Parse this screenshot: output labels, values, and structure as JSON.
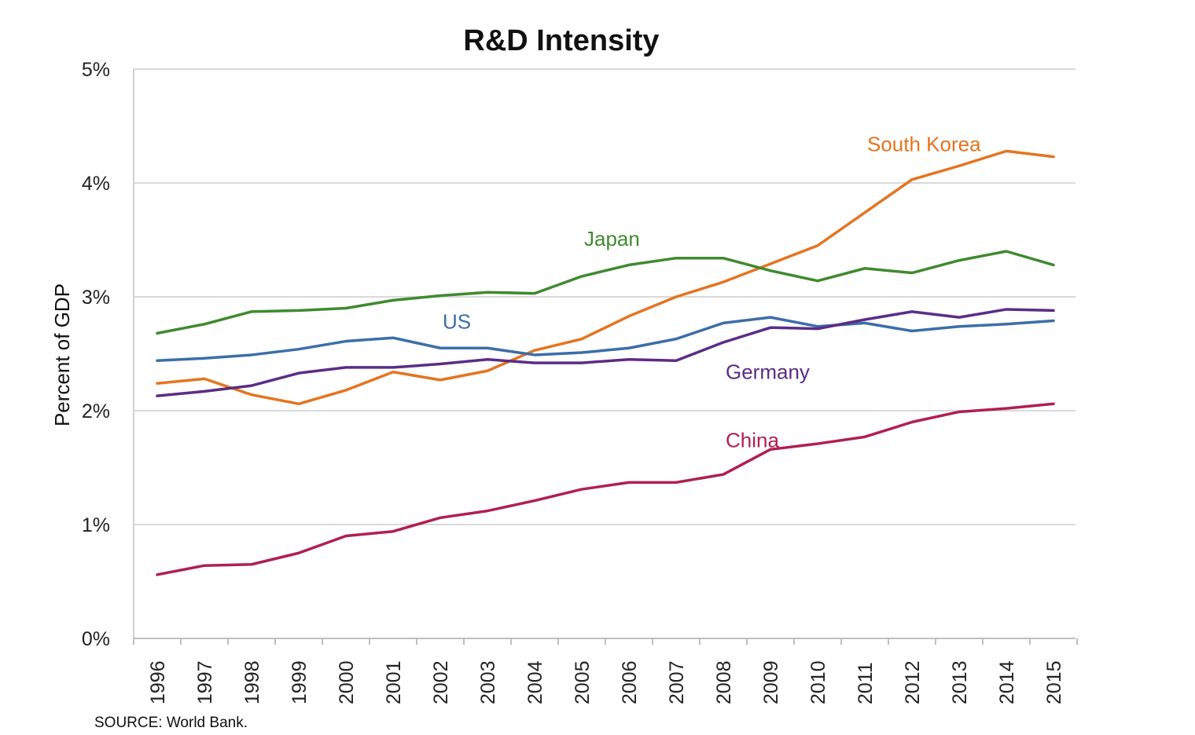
{
  "chart_data": {
    "type": "line",
    "title": "R&D Intensity",
    "xlabel": "",
    "ylabel": "Percent of GDP",
    "source": "SOURCE: World Bank.",
    "x": [
      "1996",
      "1997",
      "1998",
      "1999",
      "2000",
      "2001",
      "2002",
      "2003",
      "2004",
      "2005",
      "2006",
      "2007",
      "2008",
      "2009",
      "2010",
      "2011",
      "2012",
      "2013",
      "2014",
      "2015"
    ],
    "ylim": [
      0,
      5
    ],
    "yticks": [
      {
        "value": 0,
        "label": "0%"
      },
      {
        "value": 1,
        "label": "1%"
      },
      {
        "value": 2,
        "label": "2%"
      },
      {
        "value": 3,
        "label": "3%"
      },
      {
        "value": 4,
        "label": "4%"
      },
      {
        "value": 5,
        "label": "5%"
      }
    ],
    "grid": true,
    "legend": "inline labels",
    "series": [
      {
        "name": "South Korea",
        "color": "#E5741F",
        "values": [
          2.24,
          2.28,
          2.14,
          2.06,
          2.18,
          2.34,
          2.27,
          2.35,
          2.53,
          2.63,
          2.83,
          3.0,
          3.13,
          3.29,
          3.45,
          3.74,
          4.03,
          4.15,
          4.28,
          4.23
        ]
      },
      {
        "name": "Japan",
        "color": "#3F8A2F",
        "values": [
          2.68,
          2.76,
          2.87,
          2.88,
          2.9,
          2.97,
          3.01,
          3.04,
          3.03,
          3.18,
          3.28,
          3.34,
          3.34,
          3.23,
          3.14,
          3.25,
          3.21,
          3.32,
          3.4,
          3.28
        ]
      },
      {
        "name": "US",
        "color": "#3B6EA8",
        "values": [
          2.44,
          2.46,
          2.49,
          2.54,
          2.61,
          2.64,
          2.55,
          2.55,
          2.49,
          2.51,
          2.55,
          2.63,
          2.77,
          2.82,
          2.74,
          2.77,
          2.7,
          2.74,
          2.76,
          2.79
        ]
      },
      {
        "name": "Germany",
        "color": "#5B2C86",
        "values": [
          2.13,
          2.17,
          2.22,
          2.33,
          2.38,
          2.38,
          2.41,
          2.45,
          2.42,
          2.42,
          2.45,
          2.44,
          2.6,
          2.73,
          2.72,
          2.8,
          2.87,
          2.82,
          2.89,
          2.88
        ]
      },
      {
        "name": "China",
        "color": "#B0204F",
        "values": [
          0.56,
          0.64,
          0.65,
          0.75,
          0.9,
          0.94,
          1.06,
          1.12,
          1.21,
          1.31,
          1.37,
          1.37,
          1.44,
          1.66,
          1.71,
          1.77,
          1.9,
          1.99,
          2.02,
          2.06
        ]
      }
    ],
    "annotations": [
      {
        "text": "South Korea",
        "series": "South Korea",
        "x_pos": "2011",
        "y_value": 4.28
      },
      {
        "text": "Japan",
        "series": "Japan",
        "x_pos": "2005",
        "y_value": 3.45
      },
      {
        "text": "US",
        "series": "US",
        "x_pos": "2002",
        "y_value": 2.72
      },
      {
        "text": "Germany",
        "series": "Germany",
        "x_pos": "2008",
        "y_value": 2.28
      },
      {
        "text": "China",
        "series": "China",
        "x_pos": "2008",
        "y_value": 1.68
      }
    ]
  }
}
